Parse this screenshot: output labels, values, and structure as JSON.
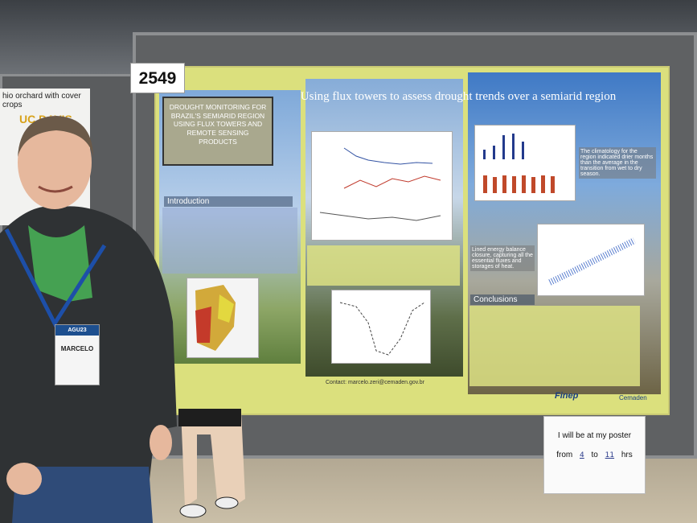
{
  "booth_number": "2549",
  "poster": {
    "box_title": "DROUGHT MONITORING FOR BRAZIL'S SEMIARID REGION USING FLUX TOWERS AND REMOTE SENSING PRODUCTS",
    "title": "Using flux towers to assess drought trends over a semiarid region",
    "introduction_heading": "Introduction",
    "conclusions_heading": "Conclusions",
    "climatology_note": "The climatology for the region indicated drier months than the average in the transition from wet to dry season.",
    "energy_note": "Lined energy balance closure, capturing all the essential fluxes and storages of heat.",
    "contact": "Contact: marcelo.zeri@cemaden.gov.br",
    "logos": [
      "Finep",
      "Cemaden"
    ]
  },
  "sign": {
    "line1": "I will be at my poster",
    "from": "from",
    "start": "4",
    "to": "to",
    "end": "11",
    "unit": "hrs"
  },
  "neighbor_poster": {
    "title": "hio orchard with cover crops",
    "institution": "UC DAVIS"
  },
  "badge": {
    "event": "AGU23",
    "name": "MARCELO"
  }
}
